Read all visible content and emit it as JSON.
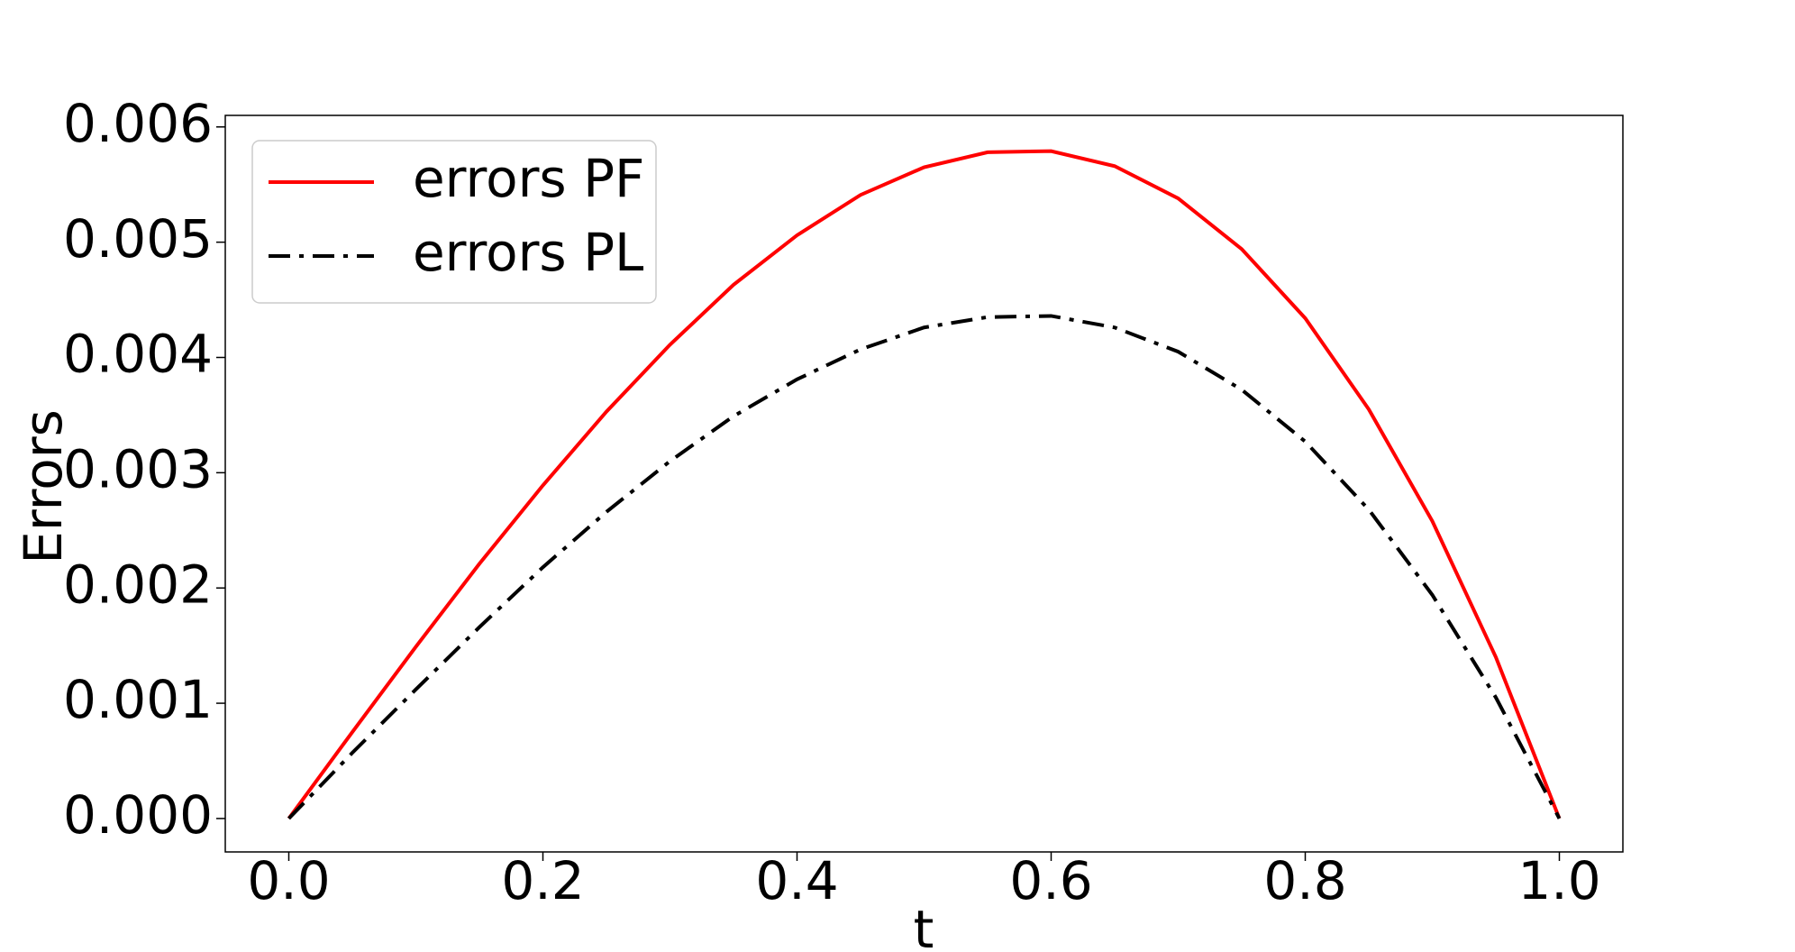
{
  "chart_data": {
    "type": "line",
    "x_label": "t",
    "y_label": "Errors",
    "x": [
      0,
      0.05,
      0.1,
      0.15,
      0.2,
      0.25,
      0.3,
      0.35,
      0.4,
      0.45,
      0.5,
      0.55,
      0.6,
      0.65,
      0.7,
      0.75,
      0.8,
      0.85,
      0.9,
      0.95,
      1
    ],
    "series": [
      {
        "name": "errors PF",
        "color": "#ff0000",
        "linestyle": "solid",
        "values": [
          0,
          0.00075,
          0.00149,
          0.00221,
          0.00289,
          0.00353,
          0.00411,
          0.00463,
          0.00506,
          0.00541,
          0.00565,
          0.00578,
          0.00579,
          0.00566,
          0.00538,
          0.00494,
          0.00434,
          0.00355,
          0.00258,
          0.0014,
          0
        ]
      },
      {
        "name": "errors PL",
        "color": "#000000",
        "linestyle": "dashdot",
        "values": [
          0,
          0.00057,
          0.00112,
          0.00166,
          0.00218,
          0.00266,
          0.0031,
          0.00349,
          0.00381,
          0.00407,
          0.00426,
          0.00435,
          0.00436,
          0.00426,
          0.00405,
          0.00372,
          0.00327,
          0.00268,
          0.00194,
          0.00105,
          0
        ]
      }
    ],
    "xlim": [
      -0.05,
      1.05
    ],
    "xticks": [
      {
        "value": 0,
        "label": "0.0"
      },
      0.2,
      0.4,
      0.6,
      0.8,
      {
        "value": 1,
        "label": "1.0"
      }
    ],
    "ylim": [
      -0.00029,
      0.0061
    ],
    "yticks": [
      {
        "value": 0,
        "label": "0.000"
      },
      0.001,
      0.002,
      0.003,
      0.004,
      0.005,
      0.006
    ],
    "grid": false,
    "legend": "upper left"
  }
}
